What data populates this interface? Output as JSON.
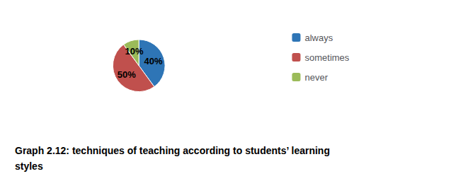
{
  "chart_data": {
    "type": "pie",
    "title": "Graph 2.12: techniques of teaching according to students’ learning\nstyles",
    "categories": [
      "always",
      "sometimes",
      "never"
    ],
    "values": [
      40,
      50,
      10
    ],
    "value_labels": [
      "40%",
      "50%",
      "10%"
    ],
    "colors": [
      "#2E75B6",
      "#C0504D",
      "#9BBB59"
    ],
    "data_labels": true,
    "legend": "right"
  }
}
